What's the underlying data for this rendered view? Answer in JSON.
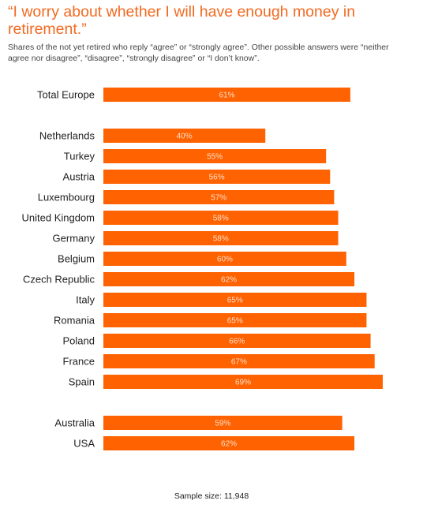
{
  "title": "“I worry about whether I will have enough money in retirement.”",
  "subtitle": "Shares of the not yet retired who reply “agree” or “strongly agree”. Other possible answers were “neither agree nor disagree”, “disagree”, “strongly disagree” or “I don’t know”.",
  "footnote": "Sample size: 11,948",
  "colors": {
    "bar": "#ff6200",
    "title": "#f26a21"
  },
  "chart_data": {
    "type": "bar",
    "orientation": "horizontal",
    "title": "“I worry about whether I will have enough money in retirement.”",
    "value_unit": "%",
    "groups": [
      [
        "Total Europe"
      ],
      [
        "Netherlands",
        "Turkey",
        "Austria",
        "Luxembourg",
        "United Kingdom",
        "Germany",
        "Belgium",
        "Czech Republic",
        "Italy",
        "Romania",
        "Poland",
        "France",
        "Spain"
      ],
      [
        "Australia",
        "USA"
      ]
    ],
    "categories": [
      "Total Europe",
      "Netherlands",
      "Turkey",
      "Austria",
      "Luxembourg",
      "United Kingdom",
      "Germany",
      "Belgium",
      "Czech Republic",
      "Italy",
      "Romania",
      "Poland",
      "France",
      "Spain",
      "Australia",
      "USA"
    ],
    "values": [
      61,
      40,
      55,
      56,
      57,
      58,
      58,
      60,
      62,
      65,
      65,
      66,
      67,
      69,
      59,
      62
    ],
    "labels": [
      "61%",
      "40%",
      "55%",
      "56%",
      "57%",
      "58%",
      "58%",
      "60%",
      "62%",
      "65%",
      "65%",
      "66%",
      "67%",
      "69%",
      "59%",
      "62%"
    ],
    "grid": false,
    "legend": "none"
  }
}
